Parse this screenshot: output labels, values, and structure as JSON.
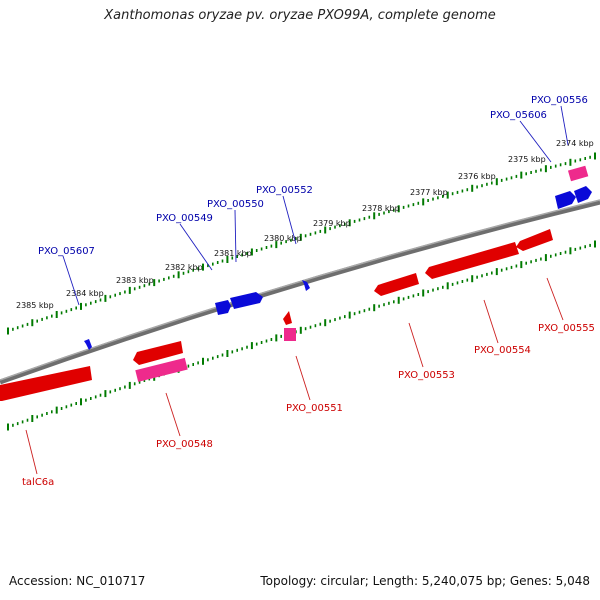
{
  "title": "Xanthomonas oryzae pv. oryzae PXO99A, complete genome",
  "footer": {
    "accession": "Accession: NC_010717",
    "topology": "Topology: circular; Length: 5,240,075 bp; Genes: 5,048"
  },
  "colors": {
    "backbone": "#808080",
    "forward_gene": "#0000e6",
    "reverse_gene": "#e60000",
    "cds_pink": "#ee2a8c",
    "tick": "#007a00",
    "forward_label": "#0000aa",
    "reverse_label": "#cc0000"
  },
  "kbp_ticks": [
    "2385 kbp",
    "2384 kbp",
    "2383 kbp",
    "2382 kbp",
    "2381 kbp",
    "2380 kbp",
    "2379 kbp",
    "2378 kbp",
    "2377 kbp",
    "2376 kbp",
    "2375 kbp",
    "2374 kbp"
  ],
  "forward_labels": [
    "PXO_05607",
    "PXO_00549",
    "PXO_00550",
    "PXO_00552",
    "PXO_05606",
    "PXO_00556"
  ],
  "reverse_labels": [
    "talC6a",
    "PXO_00548",
    "PXO_00551",
    "PXO_00553",
    "PXO_00554",
    "PXO_00555"
  ]
}
